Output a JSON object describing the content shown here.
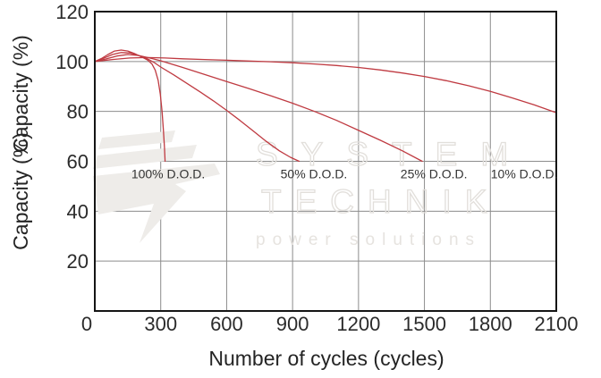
{
  "chart_data": {
    "type": "line",
    "title": "",
    "xlabel": "Number of cycles (cycles)",
    "ylabel": "Capacity (%)",
    "ylabel_copies": 2,
    "xlim": [
      0,
      2100
    ],
    "ylim": [
      0,
      120
    ],
    "x_ticks": [
      0,
      300,
      600,
      900,
      1200,
      1500,
      1800,
      2100
    ],
    "y_ticks": [
      20,
      40,
      60,
      80,
      100,
      120
    ],
    "grid": true,
    "legend_position": "inline-annotations",
    "line_color": "#bf3a41",
    "series": [
      {
        "name": "100% D.O.D.",
        "points": [
          [
            0,
            100
          ],
          [
            30,
            101.2
          ],
          [
            60,
            102.8
          ],
          [
            90,
            104.2
          ],
          [
            120,
            104.6
          ],
          [
            150,
            104.2
          ],
          [
            180,
            103.2
          ],
          [
            210,
            102
          ],
          [
            240,
            100.6
          ],
          [
            260,
            99
          ],
          [
            275,
            96.5
          ],
          [
            288,
            92.5
          ],
          [
            298,
            87
          ],
          [
            306,
            80
          ],
          [
            312,
            72.5
          ],
          [
            317,
            65.5
          ],
          [
            320,
            60
          ]
        ]
      },
      {
        "name": "50% D.O.D.",
        "points": [
          [
            0,
            100
          ],
          [
            40,
            101.3
          ],
          [
            80,
            102.8
          ],
          [
            120,
            103.6
          ],
          [
            160,
            103.4
          ],
          [
            200,
            102.4
          ],
          [
            240,
            101
          ],
          [
            270,
            99.6
          ],
          [
            300,
            97.8
          ],
          [
            360,
            94.6
          ],
          [
            420,
            91.2
          ],
          [
            480,
            87.8
          ],
          [
            540,
            84.2
          ],
          [
            600,
            80.4
          ],
          [
            660,
            76.4
          ],
          [
            720,
            72.2
          ],
          [
            780,
            68
          ],
          [
            840,
            64.2
          ],
          [
            890,
            61.6
          ],
          [
            930,
            60
          ]
        ]
      },
      {
        "name": "25% D.O.D.",
        "points": [
          [
            0,
            100
          ],
          [
            50,
            101
          ],
          [
            100,
            102.2
          ],
          [
            150,
            102.8
          ],
          [
            200,
            102.4
          ],
          [
            250,
            101.4
          ],
          [
            300,
            100.3
          ],
          [
            400,
            97.6
          ],
          [
            500,
            94.8
          ],
          [
            600,
            92
          ],
          [
            700,
            89.2
          ],
          [
            800,
            86.3
          ],
          [
            900,
            83.3
          ],
          [
            1000,
            80
          ],
          [
            1100,
            76.4
          ],
          [
            1200,
            72.4
          ],
          [
            1300,
            68.4
          ],
          [
            1400,
            64.2
          ],
          [
            1490,
            60
          ]
        ]
      },
      {
        "name": "10% D.O.D.",
        "points": [
          [
            0,
            100
          ],
          [
            80,
            100.8
          ],
          [
            160,
            101.4
          ],
          [
            240,
            101.6
          ],
          [
            320,
            101.4
          ],
          [
            400,
            101.1
          ],
          [
            500,
            100.8
          ],
          [
            600,
            100.5
          ],
          [
            700,
            100.2
          ],
          [
            800,
            99.9
          ],
          [
            900,
            99.5
          ],
          [
            1000,
            99
          ],
          [
            1100,
            98.4
          ],
          [
            1200,
            97.6
          ],
          [
            1300,
            96.6
          ],
          [
            1400,
            95.4
          ],
          [
            1500,
            94
          ],
          [
            1600,
            92.3
          ],
          [
            1700,
            90.3
          ],
          [
            1800,
            88
          ],
          [
            1900,
            85.4
          ],
          [
            2000,
            82.6
          ],
          [
            2100,
            79.5
          ]
        ]
      }
    ],
    "annotations": [
      {
        "text": "100% D.O.D.",
        "x_cycles": 334,
        "y_percent": 55
      },
      {
        "text": "50% D.O.D.",
        "x_cycles": 997,
        "y_percent": 55
      },
      {
        "text": "25% D.O.D.",
        "x_cycles": 1543,
        "y_percent": 55
      },
      {
        "text": "10% D.O.D.",
        "x_cycles": 1954,
        "y_percent": 55
      }
    ]
  },
  "watermark": {
    "line1": "SYSTEM",
    "line2": "TECHNIK",
    "line3": "power solutions"
  },
  "colors": {
    "curve": "#bf3a41",
    "grid": "#8c8c8c",
    "axis_border": "#151515",
    "text": "#2b2b2b",
    "watermark": "#e4e1dd"
  }
}
